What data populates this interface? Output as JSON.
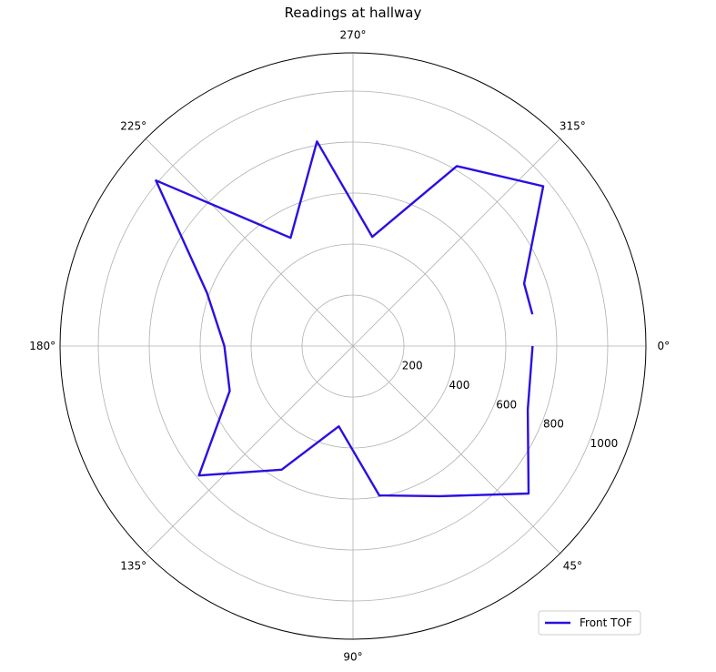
{
  "chart_data": {
    "type": "line",
    "projection": "polar",
    "title": "Readings at hallway",
    "theta_zero_location": "E",
    "theta_direction": "clockwise",
    "angle_ticks": [
      {
        "deg": 0,
        "label": "0°"
      },
      {
        "deg": 45,
        "label": "45°"
      },
      {
        "deg": 90,
        "label": "90°"
      },
      {
        "deg": 135,
        "label": "135°"
      },
      {
        "deg": 180,
        "label": "180°"
      },
      {
        "deg": 225,
        "label": "225°"
      },
      {
        "deg": 270,
        "label": "270°"
      },
      {
        "deg": 315,
        "label": "315°"
      }
    ],
    "radial_ticks": [
      {
        "value": 200,
        "label": "200"
      },
      {
        "value": 400,
        "label": "400"
      },
      {
        "value": 600,
        "label": "600"
      },
      {
        "value": 800,
        "label": "800"
      },
      {
        "value": 1000,
        "label": "1000"
      }
    ],
    "rlim": [
      0,
      1150
    ],
    "grid": true,
    "legend_position": "lower-right",
    "series": [
      {
        "name": "Front TOF",
        "color": "#2a0fe3",
        "theta_deg": [
          0,
          20,
          40,
          60,
          80,
          100,
          120,
          140,
          160,
          180,
          200,
          220,
          240,
          260,
          280,
          300,
          320,
          340,
          350
        ],
        "r": [
          705,
          730,
          900,
          680,
          595,
          320,
          560,
          790,
          515,
          505,
          610,
          1010,
          490,
          815,
          435,
          815,
          975,
          715,
          715
        ]
      }
    ]
  }
}
